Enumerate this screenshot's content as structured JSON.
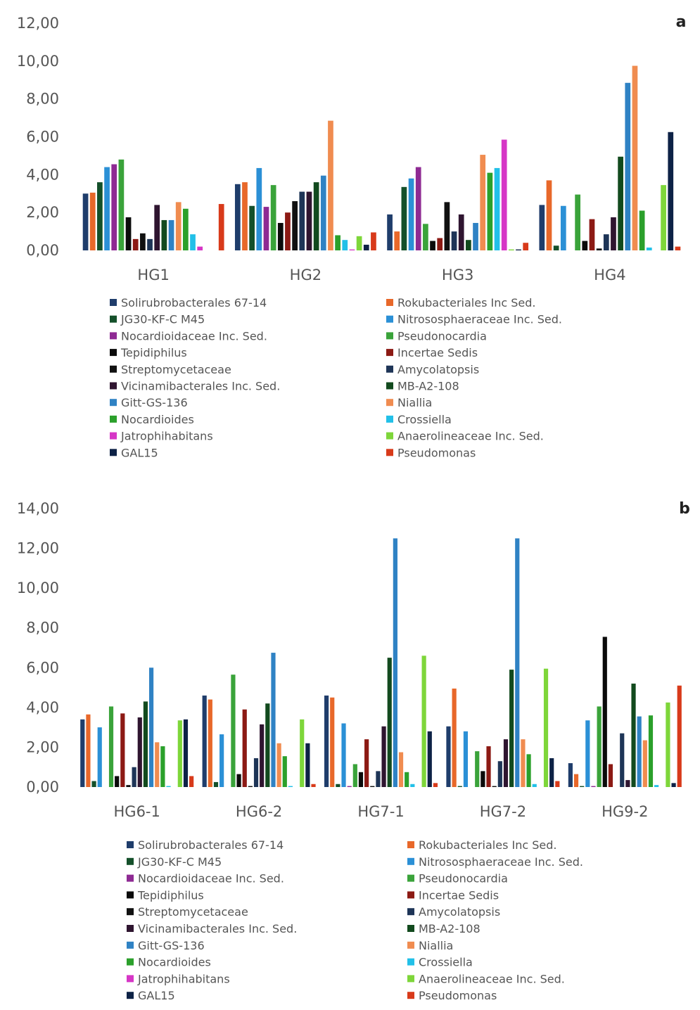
{
  "colors": [
    "#1F3D6B",
    "#E8682A",
    "#14502A",
    "#2B90D6",
    "#8E2A93",
    "#3AA33A",
    "#0B0B0B",
    "#8C1A14",
    "#111111",
    "#1E3557",
    "#2F1530",
    "#124A1E",
    "#2F82C4",
    "#F08C50",
    "#2BA02B",
    "#22C0E8",
    "#D636C6",
    "#7ED63A",
    "#0D2246",
    "#D83A1A"
  ],
  "chart_data": [
    {
      "type": "bar",
      "label": "a",
      "ylim": [
        0,
        12
      ],
      "yticks": [
        "0,00",
        "2,00",
        "4,00",
        "6,00",
        "8,00",
        "10,00",
        "12,00"
      ],
      "categories": [
        "HG1",
        "HG2",
        "HG3",
        "HG4"
      ],
      "series": [
        {
          "name": "Solirubrobacterales 67-14",
          "values": [
            3.0,
            3.5,
            1.9,
            2.4
          ]
        },
        {
          "name": "Rokubacteriales Inc Sed.",
          "values": [
            3.05,
            3.6,
            1.0,
            3.7
          ]
        },
        {
          "name": "JG30-KF-C M45",
          "values": [
            3.6,
            2.35,
            3.35,
            0.25
          ]
        },
        {
          "name": "Nitrososphaeraceae Inc. Sed.",
          "values": [
            4.4,
            4.35,
            3.8,
            2.35
          ]
        },
        {
          "name": "Nocardioidaceae Inc. Sed.",
          "values": [
            4.55,
            2.3,
            4.4,
            0.0
          ]
        },
        {
          "name": "Pseudonocardia",
          "values": [
            4.8,
            3.45,
            1.4,
            2.95
          ]
        },
        {
          "name": "Tepidiphilus",
          "values": [
            1.75,
            1.45,
            0.5,
            0.5
          ]
        },
        {
          "name": "Incertae Sedis",
          "values": [
            0.6,
            2.0,
            0.65,
            1.65
          ]
        },
        {
          "name": "Streptomycetaceae",
          "values": [
            0.9,
            2.6,
            2.55,
            0.1
          ]
        },
        {
          "name": "Amycolatopsis",
          "values": [
            0.6,
            3.1,
            1.0,
            0.85
          ]
        },
        {
          "name": "Vicinamibacterales Inc. Sed.",
          "values": [
            2.4,
            3.1,
            1.9,
            1.75
          ]
        },
        {
          "name": "MB-A2-108",
          "values": [
            1.6,
            3.6,
            0.55,
            4.95
          ]
        },
        {
          "name": "Gitt-GS-136",
          "values": [
            1.6,
            3.95,
            1.45,
            8.85
          ]
        },
        {
          "name": "Niallia",
          "values": [
            2.55,
            6.85,
            5.05,
            9.75
          ]
        },
        {
          "name": "Nocardioides",
          "values": [
            2.2,
            0.8,
            4.1,
            2.1
          ]
        },
        {
          "name": "Crossiella",
          "values": [
            0.85,
            0.55,
            4.35,
            0.15
          ]
        },
        {
          "name": "Jatrophihabitans",
          "values": [
            0.2,
            0.05,
            5.85,
            0.0
          ]
        },
        {
          "name": "Anaerolineaceae Inc. Sed.",
          "values": [
            0.0,
            0.75,
            0.05,
            3.45
          ]
        },
        {
          "name": "GAL15",
          "values": [
            0.0,
            0.3,
            0.05,
            6.25
          ]
        },
        {
          "name": "Pseudomonas",
          "values": [
            2.45,
            0.95,
            0.4,
            0.2
          ]
        }
      ]
    },
    {
      "type": "bar",
      "label": "b",
      "ylim": [
        0,
        14
      ],
      "yticks": [
        "0,00",
        "2,00",
        "4,00",
        "6,00",
        "8,00",
        "10,00",
        "12,00",
        "14,00"
      ],
      "categories": [
        "HG6-1",
        "HG6-2",
        "HG7-1",
        "HG7-2",
        "HG9-2"
      ],
      "series": [
        {
          "name": "Solirubrobacterales 67-14",
          "values": [
            3.4,
            4.6,
            4.6,
            3.05,
            1.2
          ]
        },
        {
          "name": "Rokubacteriales Inc Sed.",
          "values": [
            3.65,
            4.4,
            4.5,
            4.95,
            0.65
          ]
        },
        {
          "name": "JG30-KF-C M45",
          "values": [
            0.3,
            0.25,
            0.15,
            0.05,
            0.05
          ]
        },
        {
          "name": "Nitrososphaeraceae Inc. Sed.",
          "values": [
            3.0,
            2.65,
            3.2,
            2.8,
            3.35
          ]
        },
        {
          "name": "Nocardioidaceae Inc. Sed.",
          "values": [
            0.0,
            0.0,
            0.05,
            0.0,
            0.05
          ]
        },
        {
          "name": "Pseudonocardia",
          "values": [
            4.05,
            5.65,
            1.15,
            1.8,
            4.05
          ]
        },
        {
          "name": "Tepidiphilus",
          "values": [
            0.55,
            0.65,
            0.75,
            0.8,
            7.55
          ]
        },
        {
          "name": "Incertae Sedis",
          "values": [
            3.7,
            3.9,
            2.4,
            2.05,
            1.15
          ]
        },
        {
          "name": "Streptomycetaceae",
          "values": [
            0.1,
            0.05,
            0.05,
            0.05,
            0.0
          ]
        },
        {
          "name": "Amycolatopsis",
          "values": [
            1.0,
            1.45,
            0.8,
            1.3,
            2.7
          ]
        },
        {
          "name": "Vicinamibacterales Inc. Sed.",
          "values": [
            3.5,
            3.15,
            3.05,
            2.4,
            0.35
          ]
        },
        {
          "name": "MB-A2-108",
          "values": [
            4.3,
            4.2,
            6.5,
            5.9,
            5.2
          ]
        },
        {
          "name": "Gitt-GS-136",
          "values": [
            6.0,
            6.75,
            12.5,
            12.5,
            3.55
          ]
        },
        {
          "name": "Niallia",
          "values": [
            2.25,
            2.2,
            1.75,
            2.4,
            2.35
          ]
        },
        {
          "name": "Nocardioides",
          "values": [
            2.05,
            1.55,
            0.75,
            1.65,
            3.6
          ]
        },
        {
          "name": "Crossiella",
          "values": [
            0.05,
            0.05,
            0.15,
            0.15,
            0.1
          ]
        },
        {
          "name": "Jatrophihabitans",
          "values": [
            0.0,
            0.0,
            0.0,
            0.0,
            0.0
          ]
        },
        {
          "name": "Anaerolineaceae Inc. Sed.",
          "values": [
            3.35,
            3.4,
            6.6,
            5.95,
            4.25
          ]
        },
        {
          "name": "GAL15",
          "values": [
            3.4,
            2.2,
            2.8,
            1.45,
            0.2
          ]
        },
        {
          "name": "Pseudomonas",
          "values": [
            0.55,
            0.15,
            0.2,
            0.3,
            5.1
          ]
        }
      ]
    }
  ],
  "legend": {
    "left": [
      "Solirubrobacterales 67-14",
      "JG30-KF-C M45",
      "Nocardioidaceae Inc. Sed.",
      "Tepidiphilus",
      "Streptomycetaceae",
      "Vicinamibacterales Inc. Sed.",
      "Gitt-GS-136",
      "Nocardioides",
      "Jatrophihabitans",
      "GAL15"
    ],
    "right": [
      "Rokubacteriales Inc Sed.",
      "Nitrososphaeraceae Inc. Sed.",
      "Pseudonocardia",
      "Incertae Sedis",
      "Amycolatopsis",
      "MB-A2-108",
      "Niallia",
      "Crossiella",
      "Anaerolineaceae Inc. Sed.",
      "Pseudomonas"
    ],
    "left_color_index": [
      0,
      2,
      4,
      6,
      8,
      10,
      12,
      14,
      16,
      18
    ],
    "right_color_index": [
      1,
      3,
      5,
      7,
      9,
      11,
      13,
      15,
      17,
      19
    ]
  }
}
